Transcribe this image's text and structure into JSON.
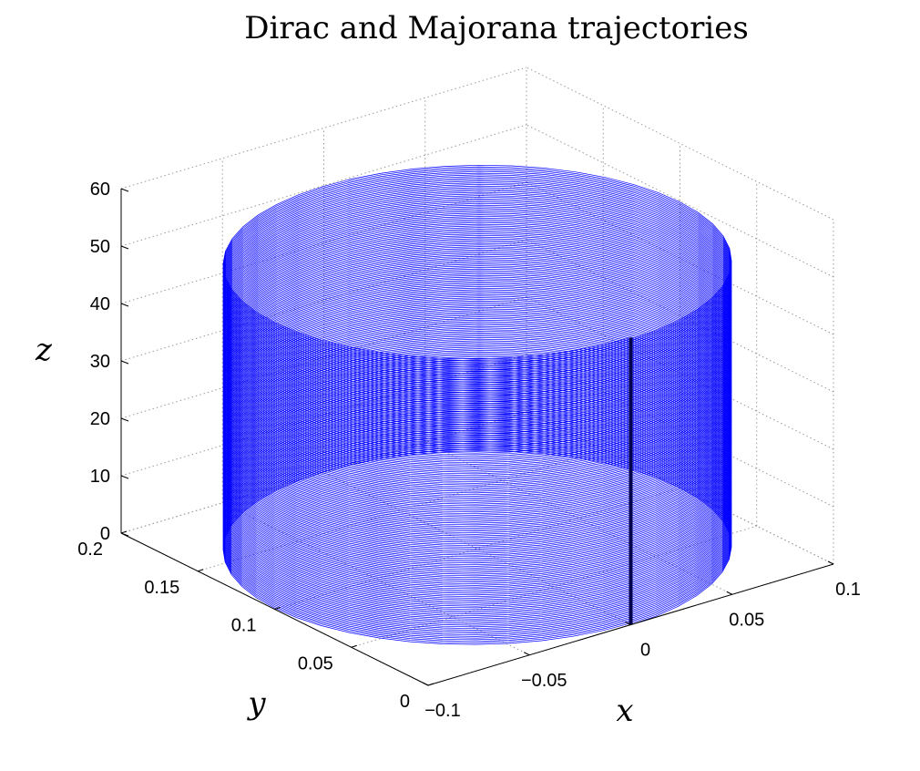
{
  "chart_data": {
    "type": "line3d",
    "title": "Dirac and Majorana trajectories",
    "xlabel": "x",
    "ylabel": "y",
    "zlabel": "z",
    "xlim": [
      -0.1,
      0.1
    ],
    "ylim": [
      0,
      0.2
    ],
    "zlim": [
      0,
      60
    ],
    "x_ticks": [
      "−0.1",
      "−0.05",
      "0",
      "0.05",
      "0.1"
    ],
    "x_tick_values": [
      -0.1,
      -0.05,
      0,
      0.05,
      0.1
    ],
    "y_ticks": [
      "0",
      "0.05",
      "0.1",
      "0.15",
      "0.2"
    ],
    "y_tick_values": [
      0,
      0.05,
      0.1,
      0.15,
      0.2
    ],
    "z_ticks": [
      "0",
      "10",
      "20",
      "30",
      "40",
      "50",
      "60"
    ],
    "z_tick_values": [
      0,
      10,
      20,
      30,
      40,
      50,
      60
    ],
    "grid": true,
    "series": [
      {
        "color": "#0000ff",
        "kind": "helix",
        "center_x": 0,
        "center_y": 0.1,
        "radius": 0.1,
        "z_range": [
          0,
          50
        ],
        "turns": 180
      },
      {
        "color": "#00004d",
        "kind": "vertical-line",
        "x": 0.0,
        "y": 0.0,
        "z_range": [
          0,
          50
        ]
      }
    ]
  }
}
